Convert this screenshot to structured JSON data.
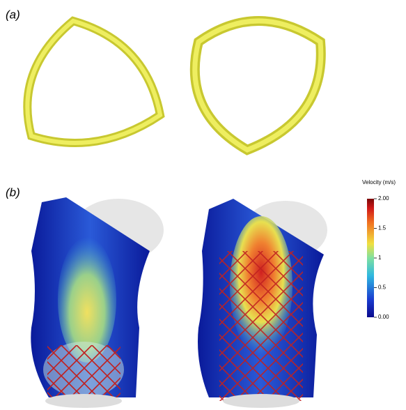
{
  "panels": [
    {
      "label": "(a)"
    },
    {
      "label": "(b)"
    }
  ],
  "colorbar": {
    "title": "Velocity (m/s)",
    "lim": [
      0,
      2
    ],
    "ticks": [
      {
        "value": 0,
        "label": "0.00"
      },
      0.5,
      1,
      1.5,
      {
        "value": 2,
        "label": "2.00"
      }
    ]
  }
}
